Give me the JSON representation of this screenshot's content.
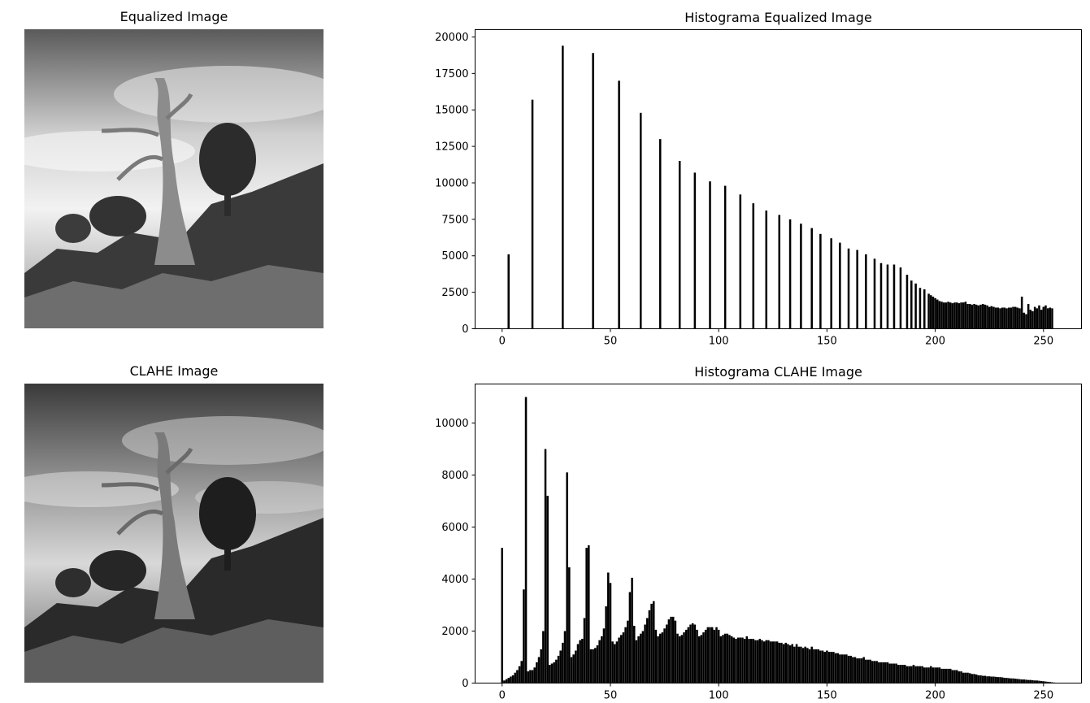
{
  "panels": {
    "equalized_title": "Equalized Image",
    "clahe_title": "CLAHE Image"
  },
  "chart_data": [
    {
      "type": "bar",
      "title": "Histograma Equalized Image",
      "xlabel": "",
      "ylabel": "",
      "xlim": [
        -12,
        268
      ],
      "ylim": [
        0,
        20500
      ],
      "xticks": [
        0,
        50,
        100,
        150,
        200,
        250
      ],
      "yticks": [
        0,
        2500,
        5000,
        7500,
        10000,
        12500,
        15000,
        17500,
        20000
      ],
      "bar_color": "#000000",
      "grid": false,
      "bins": [
        3,
        14,
        28,
        42,
        54,
        64,
        73,
        82,
        89,
        96,
        103,
        110,
        116,
        122,
        128,
        133,
        138,
        143,
        147,
        152,
        156,
        160,
        164,
        168,
        172,
        175,
        178,
        181,
        184,
        187,
        189,
        191,
        193,
        195,
        197,
        198,
        199,
        200,
        201,
        202,
        203,
        204,
        205,
        206,
        207,
        208,
        209,
        210,
        211,
        212,
        213,
        214,
        215,
        216,
        217,
        218,
        219,
        220,
        221,
        222,
        223,
        224,
        225,
        226,
        227,
        228,
        229,
        230,
        231,
        232,
        233,
        234,
        235,
        236,
        237,
        238,
        239,
        240,
        241,
        242,
        243,
        244,
        245,
        246,
        247,
        248,
        249,
        250,
        251,
        252,
        253,
        254
      ],
      "values": [
        5100,
        15700,
        19400,
        18900,
        17000,
        14800,
        13000,
        11500,
        10700,
        10100,
        9800,
        9200,
        8600,
        8100,
        7800,
        7500,
        7200,
        6900,
        6500,
        6200,
        5900,
        5500,
        5400,
        5100,
        4800,
        4500,
        4400,
        4400,
        4200,
        3700,
        3300,
        3100,
        2800,
        2700,
        2400,
        2300,
        2200,
        2100,
        2000,
        1900,
        1850,
        1800,
        1800,
        1850,
        1800,
        1750,
        1800,
        1800,
        1750,
        1800,
        1800,
        1850,
        1700,
        1700,
        1650,
        1700,
        1650,
        1600,
        1650,
        1700,
        1650,
        1600,
        1500,
        1550,
        1500,
        1450,
        1450,
        1400,
        1450,
        1450,
        1400,
        1450,
        1450,
        1500,
        1500,
        1450,
        1400,
        2200,
        1100,
        1000,
        1700,
        1300,
        1200,
        1500,
        1400,
        1600,
        1300,
        1500,
        1600,
        1400,
        1450,
        1400
      ]
    },
    {
      "type": "bar",
      "title": "Histograma CLAHE Image",
      "xlabel": "",
      "ylabel": "",
      "xlim": [
        -12,
        268
      ],
      "ylim": [
        0,
        11500
      ],
      "xticks": [
        0,
        50,
        100,
        150,
        200,
        250
      ],
      "yticks": [
        0,
        2000,
        4000,
        6000,
        8000,
        10000
      ],
      "bar_color": "#000000",
      "grid": false,
      "values": [
        5200,
        100,
        150,
        200,
        250,
        300,
        400,
        500,
        650,
        850,
        3600,
        11000,
        450,
        500,
        500,
        600,
        800,
        1000,
        1300,
        2000,
        9000,
        7200,
        700,
        750,
        800,
        900,
        1050,
        1250,
        1550,
        2000,
        8100,
        4450,
        1000,
        1100,
        1250,
        1500,
        1650,
        1700,
        2500,
        5200,
        5300,
        1300,
        1300,
        1350,
        1450,
        1650,
        1800,
        2100,
        2950,
        4250,
        3850,
        1600,
        1500,
        1600,
        1750,
        1850,
        1950,
        2150,
        2400,
        3500,
        4050,
        2200,
        1650,
        1800,
        1900,
        2000,
        2250,
        2500,
        2800,
        3050,
        3150,
        2050,
        1800,
        1900,
        1950,
        2100,
        2250,
        2450,
        2550,
        2550,
        2400,
        1900,
        1800,
        1850,
        1950,
        2050,
        2150,
        2250,
        2300,
        2250,
        2050,
        1800,
        1850,
        1950,
        2050,
        2150,
        2150,
        2150,
        2050,
        2150,
        2050,
        1800,
        1850,
        1900,
        1900,
        1850,
        1800,
        1750,
        1700,
        1750,
        1750,
        1750,
        1700,
        1800,
        1700,
        1700,
        1700,
        1650,
        1650,
        1700,
        1650,
        1600,
        1650,
        1650,
        1600,
        1600,
        1600,
        1600,
        1550,
        1550,
        1500,
        1550,
        1500,
        1450,
        1500,
        1400,
        1500,
        1400,
        1400,
        1350,
        1400,
        1350,
        1300,
        1400,
        1300,
        1300,
        1300,
        1250,
        1250,
        1200,
        1250,
        1200,
        1200,
        1200,
        1150,
        1150,
        1100,
        1100,
        1100,
        1100,
        1050,
        1050,
        1000,
        1000,
        950,
        950,
        950,
        1000,
        900,
        900,
        900,
        850,
        850,
        850,
        800,
        800,
        800,
        800,
        800,
        750,
        750,
        750,
        750,
        700,
        700,
        700,
        700,
        650,
        650,
        650,
        700,
        650,
        650,
        650,
        650,
        600,
        600,
        600,
        650,
        600,
        600,
        600,
        600,
        550,
        550,
        550,
        550,
        550,
        500,
        500,
        500,
        450,
        450,
        400,
        400,
        400,
        380,
        350,
        350,
        330,
        300,
        300,
        280,
        280,
        260,
        260,
        250,
        250,
        240,
        230,
        230,
        220,
        200,
        200,
        190,
        180,
        180,
        170,
        160,
        150,
        140,
        140,
        130,
        120,
        120,
        110,
        100,
        100,
        90,
        80,
        70,
        60,
        50,
        40,
        30,
        20
      ]
    }
  ]
}
